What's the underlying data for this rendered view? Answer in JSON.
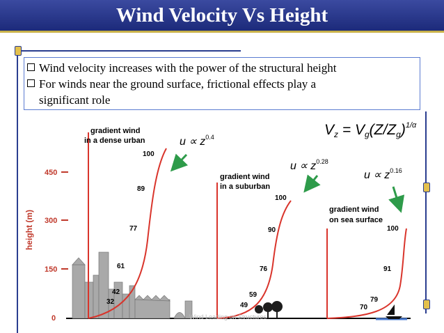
{
  "slide": {
    "title": "Wind Velocity Vs Height",
    "bullets": [
      "Wind velocity increases with the power of the structural height",
      "For winds near the ground surface, frictional effects play a",
      "significant role"
    ],
    "footer": "Wind Loading on Structures"
  },
  "diagram": {
    "formula_lhs": "V",
    "formula_sub": "z",
    "formula_rhs": " = V",
    "formula_sub2": "g",
    "formula_mid": "(Z/Z",
    "formula_sub3": "g",
    "formula_close": ")",
    "formula_exp": "1/α",
    "y_axis_label": "height (m)",
    "y_ticks": [
      "450",
      "300",
      "150",
      "0"
    ],
    "profiles": [
      {
        "label_line1": "gradient wind",
        "label_line2": "in a dense urban",
        "exponent": "0.4",
        "values": [
          "100",
          "89",
          "77",
          "61",
          "42",
          "32"
        ]
      },
      {
        "label_line1": "gradient wind",
        "label_line2": "in a suburban",
        "exponent": "0.28",
        "values": [
          "100",
          "90",
          "76",
          "59",
          "49"
        ]
      },
      {
        "label_line1": "gradient wind",
        "label_line2": "on sea surface",
        "exponent": "0.16",
        "values": [
          "100",
          "91",
          "79",
          "70"
        ]
      }
    ],
    "proportional_prefix": "u ∝ z",
    "colors": {
      "curve": "#d9342b",
      "arrow": "#2e9b4a",
      "axis": "#000000",
      "building": "#a9a9a9"
    }
  }
}
